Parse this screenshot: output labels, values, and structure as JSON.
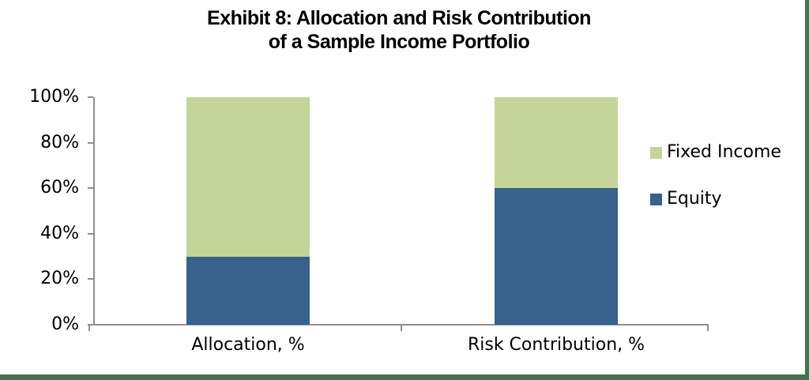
{
  "title": {
    "line1": "Exhibit 8: Allocation and Risk Contribution",
    "line2": "of a Sample Income Portfolio"
  },
  "chart_data": {
    "type": "bar",
    "stacked": true,
    "title": "Exhibit 8: Allocation and Risk Contribution of a Sample Income Portfolio",
    "categories": [
      "Allocation, %",
      "Risk Contribution, %"
    ],
    "series": [
      {
        "name": "Equity",
        "color": "#38618C",
        "values": [
          30,
          60
        ]
      },
      {
        "name": "Fixed Income",
        "color": "#C5D59A",
        "values": [
          70,
          40
        ]
      }
    ],
    "xlabel": "",
    "ylabel": "",
    "ylim": [
      0,
      100
    ],
    "ytick_values": [
      0,
      20,
      40,
      60,
      80,
      100
    ],
    "yticks": [
      "0%",
      "20%",
      "40%",
      "60%",
      "80%",
      "100%"
    ],
    "legend": [
      "Fixed Income",
      "Equity"
    ],
    "legend_position": "right",
    "grid": false,
    "axis_color": "#8F8F8F"
  },
  "page": {
    "background": "#FFFFFF",
    "border_color": "#47704F"
  }
}
